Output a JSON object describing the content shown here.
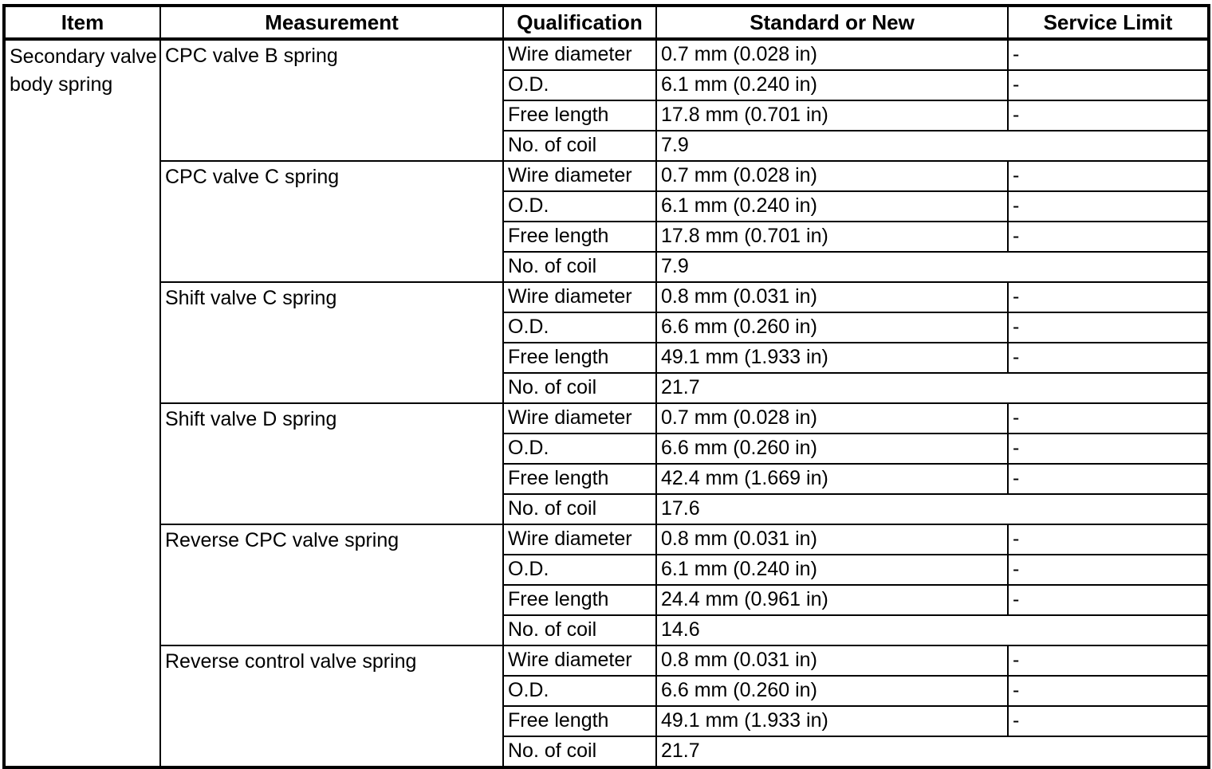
{
  "colors": {
    "background": "#ffffff",
    "border": "#000000",
    "text": "#000000"
  },
  "table": {
    "headers": {
      "item": "Item",
      "measurement": "Measurement",
      "qualification": "Qualification",
      "standard": "Standard or New",
      "service_limit": "Service Limit"
    },
    "item": "Secondary valve body spring",
    "groups": [
      {
        "measurement": "CPC valve B spring",
        "rows": [
          {
            "qualification": "Wire diameter",
            "standard": "0.7 mm (0.028 in)",
            "service_limit": "-"
          },
          {
            "qualification": "O.D.",
            "standard": "6.1 mm (0.240 in)",
            "service_limit": "-"
          },
          {
            "qualification": "Free length",
            "standard": "17.8 mm (0.701 in)",
            "service_limit": "-"
          },
          {
            "qualification": "No. of coil",
            "standard": "7.9"
          }
        ]
      },
      {
        "measurement": "CPC valve C spring",
        "rows": [
          {
            "qualification": "Wire diameter",
            "standard": "0.7 mm (0.028 in)",
            "service_limit": "-"
          },
          {
            "qualification": "O.D.",
            "standard": "6.1 mm (0.240 in)",
            "service_limit": "-"
          },
          {
            "qualification": "Free length",
            "standard": "17.8 mm (0.701 in)",
            "service_limit": "-"
          },
          {
            "qualification": "No. of coil",
            "standard": "7.9"
          }
        ]
      },
      {
        "measurement": "Shift valve C spring",
        "rows": [
          {
            "qualification": "Wire diameter",
            "standard": "0.8 mm (0.031 in)",
            "service_limit": "-"
          },
          {
            "qualification": "O.D.",
            "standard": "6.6 mm (0.260 in)",
            "service_limit": "-"
          },
          {
            "qualification": "Free length",
            "standard": "49.1 mm (1.933 in)",
            "service_limit": "-"
          },
          {
            "qualification": "No. of coil",
            "standard": "21.7"
          }
        ]
      },
      {
        "measurement": "Shift valve D spring",
        "rows": [
          {
            "qualification": "Wire diameter",
            "standard": "0.7 mm (0.028 in)",
            "service_limit": "-"
          },
          {
            "qualification": "O.D.",
            "standard": "6.6 mm (0.260 in)",
            "service_limit": "-"
          },
          {
            "qualification": "Free length",
            "standard": "42.4 mm (1.669 in)",
            "service_limit": "-"
          },
          {
            "qualification": "No. of coil",
            "standard": "17.6"
          }
        ]
      },
      {
        "measurement": "Reverse CPC valve spring",
        "rows": [
          {
            "qualification": "Wire diameter",
            "standard": "0.8 mm (0.031 in)",
            "service_limit": "-"
          },
          {
            "qualification": "O.D.",
            "standard": "6.1 mm (0.240 in)",
            "service_limit": "-"
          },
          {
            "qualification": "Free length",
            "standard": "24.4 mm (0.961 in)",
            "service_limit": "-"
          },
          {
            "qualification": "No. of coil",
            "standard": "14.6"
          }
        ]
      },
      {
        "measurement": "Reverse control valve spring",
        "rows": [
          {
            "qualification": "Wire diameter",
            "standard": "0.8 mm (0.031 in)",
            "service_limit": "-"
          },
          {
            "qualification": "O.D.",
            "standard": "6.6 mm (0.260 in)",
            "service_limit": "-"
          },
          {
            "qualification": "Free length",
            "standard": "49.1 mm (1.933 in)",
            "service_limit": "-"
          },
          {
            "qualification": "No. of coil",
            "standard": "21.7"
          }
        ]
      }
    ]
  }
}
